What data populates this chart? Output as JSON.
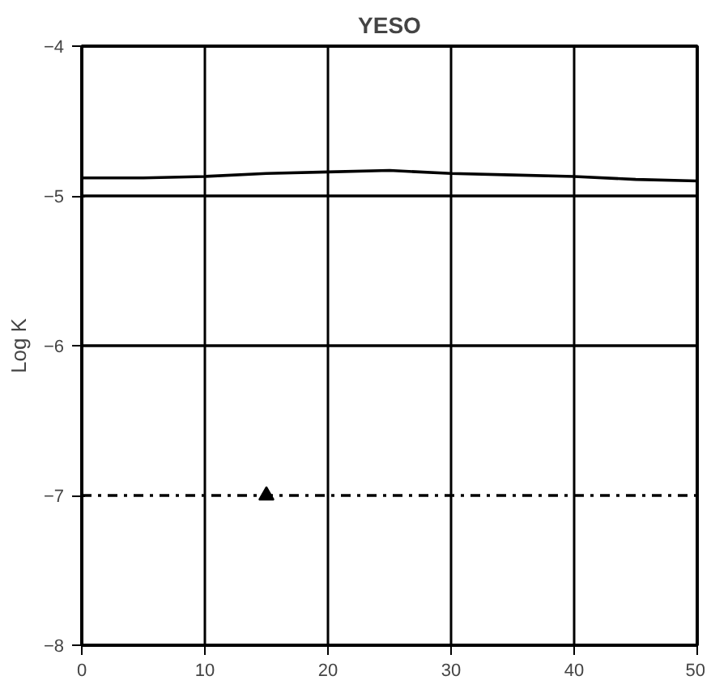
{
  "chart_data": {
    "type": "line",
    "title": "YESO",
    "ylabel": "Log K",
    "xlim": [
      0,
      50
    ],
    "xticks": [
      0,
      10,
      20,
      30,
      40,
      50
    ],
    "ylim": [
      -8,
      -4
    ],
    "yticks": [
      -8,
      -7,
      -6,
      -5,
      -4
    ],
    "grid": "x",
    "marker": "none",
    "series": [
      {
        "color": "#000000",
        "x": [
          0,
          5,
          10,
          15,
          20,
          25,
          30,
          35,
          40,
          45,
          50
        ],
        "values": [
          -4.88,
          -4.88,
          -4.87,
          -4.85,
          -4.84,
          -4.83,
          -4.85,
          -4.86,
          -4.87,
          -4.89,
          -4.9
        ],
        "line_style": "solid"
      },
      {
        "color": "#000000",
        "x": [
          0,
          50
        ],
        "values": [
          -5.0,
          -5.0
        ],
        "line_style": "solid"
      },
      {
        "color": "#000000",
        "x": [
          0,
          50
        ],
        "values": [
          -6.0,
          -6.0
        ],
        "line_style": "solid"
      },
      {
        "color": "#000000",
        "x": [
          0,
          50
        ],
        "values": [
          -7.0,
          -7.0
        ],
        "line_style": "dashed"
      },
      {
        "type": "scatter",
        "color": "#000000",
        "x": [
          15
        ],
        "values": [
          -7.0
        ],
        "marker": "triangle"
      }
    ]
  }
}
